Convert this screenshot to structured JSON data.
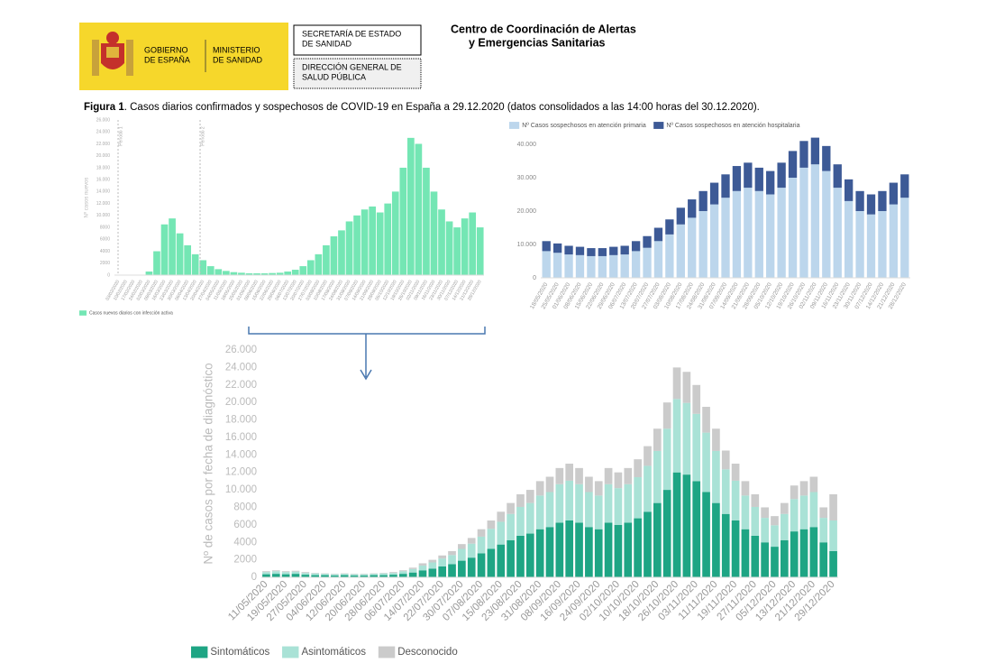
{
  "header": {
    "gobierno": [
      "GOBIERNO",
      "DE ESPAÑA"
    ],
    "ministerio": [
      "MINISTERIO",
      "DE SANIDAD"
    ],
    "box1": [
      "SECRETARÍA DE ESTADO",
      "DE SANIDAD"
    ],
    "box2": [
      "DIRECCIÓN GENERAL DE",
      "SALUD PÚBLICA"
    ],
    "centro": [
      "Centro de Coordinación de Alertas",
      "y Emergencias Sanitarias"
    ]
  },
  "caption": {
    "label": "Figura 1",
    "text": ". Casos diarios confirmados y sospechosos de COVID-19 en España a 29.12.2020 (datos consolidados a las 14:00 horas del 30.12.2020)."
  },
  "chart_data": [
    {
      "type": "bar",
      "stacked": true,
      "grid": false,
      "legend": "bottom-left",
      "y_label": "Nº casos nuevos",
      "annotations": [
        "Periodo 1",
        "Periodo 2"
      ],
      "categories": [
        "03/02/2020",
        "10/02/2020",
        "17/02/2020",
        "24/02/2020",
        "02/03/2020",
        "09/03/2020",
        "16/03/2020",
        "23/03/2020",
        "30/03/2020",
        "06/04/2020",
        "13/04/2020",
        "20/04/2020",
        "27/04/2020",
        "04/05/2020",
        "11/05/2020",
        "18/05/2020",
        "25/05/2020",
        "01/06/2020",
        "08/06/2020",
        "15/06/2020",
        "22/06/2020",
        "29/06/2020",
        "06/07/2020",
        "13/07/2020",
        "20/07/2020",
        "27/07/2020",
        "03/08/2020",
        "10/08/2020",
        "17/08/2020",
        "24/08/2020",
        "31/08/2020",
        "07/09/2020",
        "14/09/2020",
        "21/09/2020",
        "28/09/2020",
        "05/10/2020",
        "12/10/2020",
        "19/10/2020",
        "26/10/2020",
        "02/11/2020",
        "09/11/2020",
        "16/11/2020",
        "23/11/2020",
        "30/11/2020",
        "07/12/2020",
        "14/12/2020",
        "21/12/2020",
        "28/12/2020"
      ],
      "series": [
        {
          "name": "Casos nuevos diarios con infección activa",
          "color": "#74e6b4",
          "values": [
            0,
            0,
            0,
            50,
            600,
            4000,
            8500,
            9500,
            7000,
            5000,
            3500,
            2500,
            1500,
            1000,
            700,
            500,
            400,
            300,
            300,
            300,
            350,
            400,
            600,
            900,
            1500,
            2500,
            3500,
            5000,
            6500,
            7500,
            9000,
            10000,
            11000,
            11500,
            10500,
            12000,
            14000,
            18000,
            23000,
            22000,
            18000,
            14000,
            11000,
            9000,
            8000,
            9500,
            10500,
            8000
          ]
        }
      ],
      "ylim": [
        0,
        26000
      ],
      "yticks": [
        0,
        2000,
        4000,
        6000,
        8000,
        {
          "value": 10000,
          "label": "10.000"
        },
        {
          "value": 12000,
          "label": "12.000"
        },
        {
          "value": 14000,
          "label": "14.000"
        },
        {
          "value": 16000,
          "label": "16.000"
        },
        {
          "value": 18000,
          "label": "18.000"
        },
        {
          "value": 20000,
          "label": "20.000"
        },
        {
          "value": 22000,
          "label": "22.000"
        },
        {
          "value": 24000,
          "label": "24.000"
        },
        {
          "value": 26000,
          "label": "26.000"
        }
      ]
    },
    {
      "type": "bar",
      "stacked": true,
      "grid": false,
      "legend": "top-left",
      "categories": [
        "18/05/2020",
        "25/05/2020",
        "01/06/2020",
        "08/06/2020",
        "15/06/2020",
        "22/06/2020",
        "29/06/2020",
        "06/07/2020",
        "13/07/2020",
        "20/07/2020",
        "27/07/2020",
        "03/08/2020",
        "10/08/2020",
        "17/08/2020",
        "24/08/2020",
        "31/08/2020",
        "07/09/2020",
        "14/09/2020",
        "21/09/2020",
        "28/09/2020",
        "05/10/2020",
        "12/10/2020",
        "19/10/2020",
        "26/10/2020",
        "02/11/2020",
        "09/11/2020",
        "16/11/2020",
        "23/11/2020",
        "30/11/2020",
        "07/12/2020",
        "14/12/2020",
        "21/12/2020",
        "28/12/2020"
      ],
      "series": [
        {
          "name": "Nº Casos sospechosos en atención primaria",
          "color": "#bcd6ec",
          "values": [
            8000,
            7500,
            7000,
            6800,
            6500,
            6500,
            6800,
            7000,
            8000,
            9000,
            11000,
            13000,
            16000,
            18000,
            20000,
            22000,
            24000,
            26000,
            27000,
            26000,
            25000,
            27000,
            30000,
            33000,
            34000,
            32000,
            27000,
            23000,
            20000,
            19000,
            20000,
            22000,
            24000
          ]
        },
        {
          "name": "Nº Casos sospechosos en atención hospitalaria",
          "color": "#3d5a96",
          "values": [
            3000,
            2800,
            2600,
            2500,
            2400,
            2400,
            2500,
            2600,
            3000,
            3500,
            4000,
            4500,
            5000,
            5500,
            6000,
            6500,
            7000,
            7500,
            7500,
            7000,
            7000,
            7500,
            8000,
            8000,
            8000,
            7500,
            7000,
            6500,
            6000,
            6000,
            6000,
            6500,
            7000
          ]
        }
      ],
      "ylim": [
        0,
        40000
      ],
      "yticks": [
        0,
        {
          "value": 10000,
          "label": "10.000"
        },
        {
          "value": 20000,
          "label": "20.000"
        },
        {
          "value": 30000,
          "label": "30.000"
        },
        {
          "value": 40000,
          "label": "40.000"
        }
      ]
    },
    {
      "type": "bar",
      "stacked": true,
      "grid": false,
      "legend": "bottom-left",
      "y_label": "Nº de casos por fecha de diagnóstico",
      "categories": [
        "11/05/2020",
        null,
        "19/05/2020",
        null,
        "27/05/2020",
        null,
        "04/06/2020",
        null,
        "12/06/2020",
        null,
        "20/06/2020",
        null,
        "28/06/2020",
        null,
        "06/07/2020",
        null,
        "14/07/2020",
        null,
        "22/07/2020",
        null,
        "30/07/2020",
        null,
        "07/08/2020",
        null,
        "15/08/2020",
        null,
        "23/08/2020",
        null,
        "31/08/2020",
        null,
        "08/09/2020",
        null,
        "16/09/2020",
        null,
        "24/09/2020",
        null,
        "02/10/2020",
        null,
        "10/10/2020",
        null,
        "18/10/2020",
        null,
        "26/10/2020",
        null,
        "03/11/2020",
        null,
        "11/11/2020",
        null,
        "19/11/2020",
        null,
        "27/11/2020",
        null,
        "05/12/2020",
        null,
        "13/12/2020",
        null,
        "21/12/2020",
        null,
        "29/12/2020"
      ],
      "series": [
        {
          "name": "Sintomáticos",
          "color": "#1ea584",
          "values": [
            350,
            400,
            350,
            400,
            300,
            250,
            250,
            200,
            250,
            200,
            200,
            250,
            250,
            300,
            400,
            550,
            800,
            1000,
            1250,
            1500,
            1900,
            2250,
            2750,
            3250,
            3750,
            4250,
            4750,
            5000,
            5500,
            5750,
            6250,
            6500,
            6250,
            5750,
            5500,
            6250,
            6000,
            6250,
            6750,
            7500,
            8500,
            10000,
            12000,
            11750,
            11000,
            9750,
            8500,
            7250,
            6500,
            5500,
            4750,
            4000,
            3500,
            4250,
            5250,
            5500,
            5750,
            4000,
            3000
          ]
        },
        {
          "name": "Asintomáticos",
          "color": "#a9e2d6",
          "values": [
            250,
            300,
            250,
            250,
            200,
            200,
            150,
            150,
            150,
            150,
            150,
            150,
            200,
            200,
            300,
            400,
            550,
            700,
            900,
            1050,
            1350,
            1600,
            1900,
            2300,
            2600,
            3000,
            3300,
            3500,
            3850,
            4000,
            4400,
            4550,
            4400,
            4000,
            3850,
            4400,
            4200,
            4400,
            4700,
            5250,
            5950,
            7000,
            8400,
            8200,
            7700,
            6800,
            5950,
            5100,
            4550,
            3850,
            3300,
            2800,
            2450,
            3000,
            3700,
            3850,
            4000,
            2800,
            3500
          ]
        },
        {
          "name": "Desconocido",
          "color": "#cbcbcb",
          "values": [
            100,
            100,
            100,
            100,
            100,
            50,
            50,
            50,
            50,
            50,
            50,
            50,
            50,
            100,
            100,
            150,
            250,
            300,
            350,
            450,
            550,
            650,
            850,
            950,
            1150,
            1250,
            1450,
            1500,
            1650,
            1750,
            1850,
            1950,
            1850,
            1750,
            1650,
            1850,
            1800,
            1850,
            2050,
            2250,
            2550,
            3000,
            3600,
            3550,
            3300,
            2950,
            2550,
            2150,
            1950,
            1650,
            1450,
            1200,
            1050,
            1250,
            1550,
            1650,
            1750,
            1200,
            3000
          ]
        }
      ],
      "ylim": [
        0,
        26000
      ],
      "yticks": [
        0,
        2000,
        4000,
        6000,
        8000,
        {
          "value": 10000,
          "label": "10.000"
        },
        {
          "value": 12000,
          "label": "12.000"
        },
        {
          "value": 14000,
          "label": "14.000"
        },
        {
          "value": 16000,
          "label": "16.000"
        },
        {
          "value": 18000,
          "label": "18.000"
        },
        {
          "value": 20000,
          "label": "20.000"
        },
        {
          "value": 22000,
          "label": "22.000"
        },
        {
          "value": 24000,
          "label": "24.000"
        },
        {
          "value": 26000,
          "label": "26.000"
        }
      ]
    }
  ]
}
